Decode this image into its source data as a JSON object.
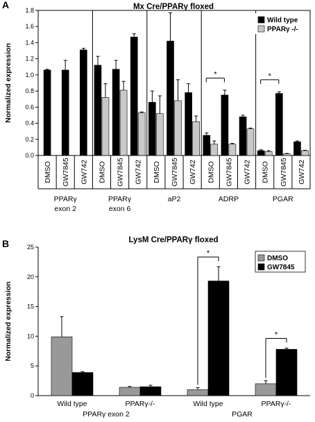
{
  "panel_labels": [
    "A",
    "B"
  ],
  "chart_data": [
    {
      "type": "bar",
      "title": "Mx Cre/PPARγ floxed",
      "xlabel": "",
      "ylabel": "Normalized expression",
      "ylim": [
        0,
        1.8
      ],
      "yticks": [
        "0.0",
        "0.2",
        "0.4",
        "0.6",
        "0.8",
        "1.0",
        "1.2",
        "1.4",
        "1.6",
        "1.8"
      ],
      "grid": false,
      "legend_position": "top-right",
      "colors": {
        "wild_type": "#000000",
        "ppar_ko": "#c8c8c8"
      },
      "groups": [
        {
          "label_lines": [
            "PPARγ",
            "exon 2"
          ],
          "categories": [
            "DMSO",
            "GW7845",
            "GW742"
          ],
          "series": [
            {
              "name": "Wild type",
              "values": [
                1.06,
                1.06,
                1.31
              ],
              "errors": [
                0.01,
                0.12,
                0.02
              ]
            }
          ]
        },
        {
          "label_lines": [
            "PPARγ",
            "exon 6"
          ],
          "categories": [
            "DMSO",
            "GW7845",
            "GW742"
          ],
          "series": [
            {
              "name": "Wild type",
              "values": [
                1.12,
                1.07,
                1.47
              ],
              "errors": [
                0.11,
                0.11,
                0.04
              ]
            },
            {
              "name": "PPARγ -/-",
              "values": [
                0.72,
                0.81,
                0.53
              ],
              "errors": [
                0.17,
                0.11,
                0.01
              ]
            }
          ]
        },
        {
          "label_lines": [
            "aP2"
          ],
          "categories": [
            "DMSO",
            "GW7845",
            "GW742"
          ],
          "series": [
            {
              "name": "Wild type",
              "values": [
                0.66,
                1.42,
                0.78
              ],
              "errors": [
                0.14,
                0.35,
                0.11
              ]
            },
            {
              "name": "PPARγ -/-",
              "values": [
                0.52,
                0.68,
                0.42
              ],
              "errors": [
                0.22,
                0.26,
                0.07
              ]
            }
          ]
        },
        {
          "label_lines": [
            "ADRP"
          ],
          "categories": [
            "DMSO",
            "GW7845",
            "GW742"
          ],
          "series": [
            {
              "name": "Wild type",
              "values": [
                0.25,
                0.75,
                0.48
              ],
              "errors": [
                0.03,
                0.06,
                0.02
              ]
            },
            {
              "name": "PPARγ -/-",
              "values": [
                0.14,
                0.14,
                0.33
              ],
              "errors": [
                0.04,
                0.01,
                0.01
              ]
            }
          ]
        },
        {
          "label_lines": [
            "PGAR"
          ],
          "categories": [
            "DMSO",
            "GW7845",
            "GW742"
          ],
          "series": [
            {
              "name": "Wild type",
              "values": [
                0.06,
                0.77,
                0.17
              ],
              "errors": [
                0.01,
                0.02,
                0.01
              ]
            },
            {
              "name": "PPARγ -/-",
              "values": [
                0.05,
                0.02,
                0.06
              ],
              "errors": [
                0.01,
                0.005,
                0.005
              ]
            }
          ]
        }
      ],
      "legend": [
        "Wild type",
        "PPARγ -/-"
      ],
      "annotations": [
        {
          "text": "*",
          "group": 3
        },
        {
          "text": "*",
          "group": 4
        }
      ]
    },
    {
      "type": "bar",
      "title": "LysM Cre/PPARγ floxed",
      "xlabel": "",
      "ylabel": "Normalized expression",
      "ylim": [
        0,
        25
      ],
      "yticks": [
        "0",
        "5",
        "10",
        "15",
        "20",
        "25"
      ],
      "grid": false,
      "legend_position": "top-right",
      "colors": {
        "DMSO": "#999999",
        "GW7845": "#000000"
      },
      "categories": [
        "Wild type",
        "PPARγ-/-",
        "Wild type",
        "PPARγ-/-"
      ],
      "gene_labels": [
        {
          "text": "PPARγ exon 2",
          "categories": [
            0,
            1
          ]
        },
        {
          "text": "PGAR",
          "categories": [
            2,
            3
          ]
        }
      ],
      "series": [
        {
          "name": "DMSO",
          "values": [
            9.9,
            1.4,
            1.0,
            2.0
          ],
          "errors": [
            3.4,
            0.15,
            0.35,
            0.5
          ]
        },
        {
          "name": "GW7845",
          "values": [
            3.9,
            1.5,
            19.3,
            7.8
          ],
          "errors": [
            0.12,
            0.25,
            2.4,
            0.2
          ]
        }
      ],
      "legend": [
        "DMSO",
        "GW7845"
      ],
      "annotations": [
        {
          "text": "*",
          "category": 2
        },
        {
          "text": "*",
          "category": 3
        }
      ]
    }
  ]
}
